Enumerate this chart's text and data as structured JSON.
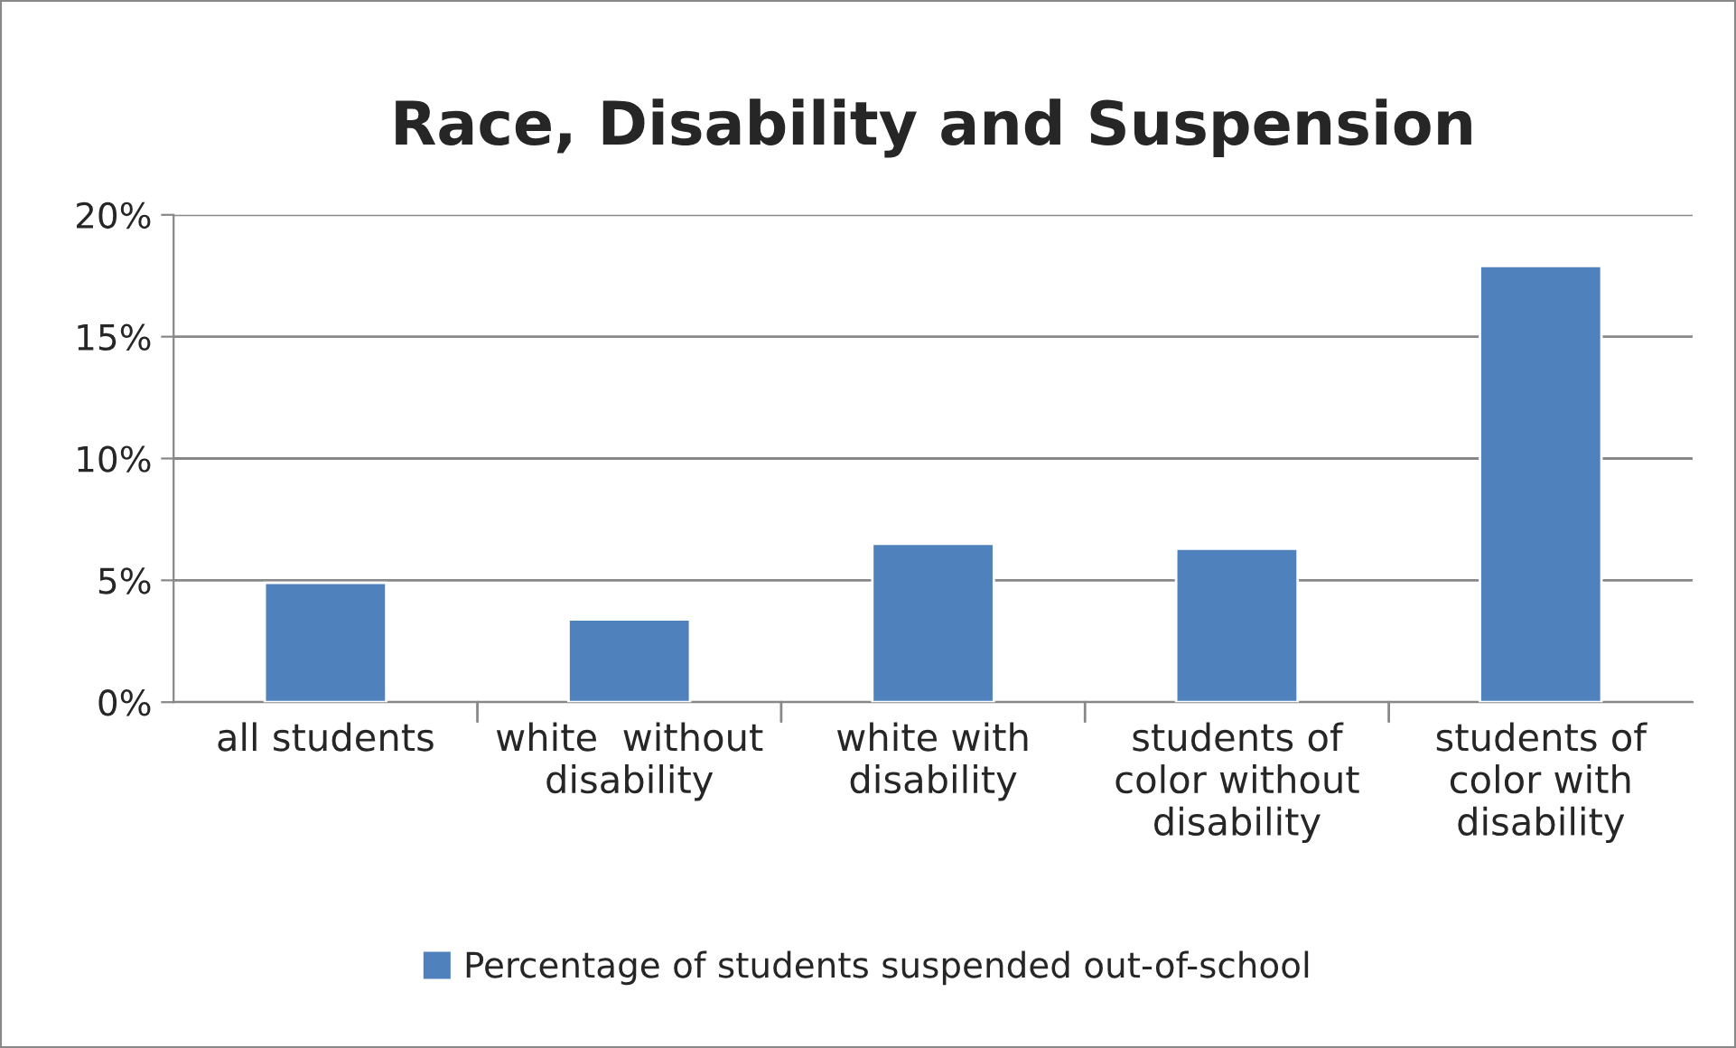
{
  "chart_data": {
    "type": "bar",
    "title": "Race, Disability and Suspension",
    "categories": [
      "all students",
      "white  without\ndisability",
      "white with\ndisability",
      "students of\ncolor without\ndisability",
      "students of\ncolor with\ndisability"
    ],
    "series": [
      {
        "name": "Percentage of students suspended out-of-school",
        "color": "#4f81bd",
        "values": [
          4.9,
          3.4,
          6.5,
          6.3,
          17.9
        ]
      }
    ],
    "ylim": [
      0,
      20
    ],
    "yticks": [
      {
        "value": 0,
        "label": "0%"
      },
      {
        "value": 5,
        "label": "5%"
      },
      {
        "value": 10,
        "label": "10%"
      },
      {
        "value": 15,
        "label": "15%"
      },
      {
        "value": 20,
        "label": "20%"
      }
    ],
    "grid": "y",
    "legend": "bottom"
  }
}
